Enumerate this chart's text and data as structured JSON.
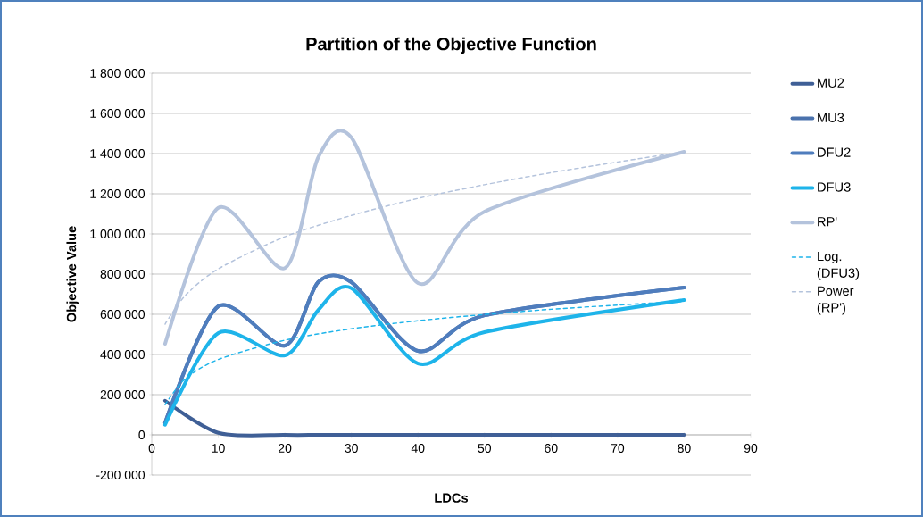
{
  "chart_data": {
    "type": "line",
    "title": "Partition of the Objective Function",
    "xlabel": "LDCs",
    "ylabel": "Objective Value",
    "x": [
      2,
      10,
      20,
      25,
      30,
      40,
      50,
      80
    ],
    "series": [
      {
        "name": "MU2",
        "color": "#3f5f96",
        "values": [
          170000,
          10000,
          0,
          0,
          0,
          0,
          0,
          0
        ]
      },
      {
        "name": "MU3",
        "color": "#4a72ad",
        "values": [
          60000,
          640000,
          444000,
          760000,
          760000,
          418000,
          595000,
          733000
        ]
      },
      {
        "name": "DFU2",
        "color": "#4f7dbd",
        "values": [
          60000,
          640000,
          444000,
          760000,
          760000,
          418000,
          595000,
          733000
        ]
      },
      {
        "name": "DFU3",
        "color": "#1eb4ea",
        "values": [
          50000,
          507000,
          395000,
          620000,
          730000,
          355000,
          511000,
          671000
        ]
      },
      {
        "name": "RP'",
        "color": "#b4c3dc",
        "values": [
          453000,
          1130000,
          830000,
          1380000,
          1480000,
          755000,
          1111000,
          1409000
        ]
      },
      {
        "name": "Log. (DFU3)",
        "color": "#1eb4ea",
        "line_style": "dashed",
        "x": [
          2,
          5,
          10,
          20,
          30,
          40,
          50,
          60,
          70,
          80
        ],
        "values": [
          150000,
          278000,
          375000,
          471000,
          528000,
          568000,
          599000,
          625000,
          646000,
          665000
        ]
      },
      {
        "name": "Power (RP')",
        "color": "#b4c3dc",
        "line_style": "dashed",
        "x": [
          2,
          5,
          10,
          20,
          30,
          40,
          50,
          60,
          70,
          80
        ],
        "values": [
          551000,
          692000,
          826000,
          986000,
          1092000,
          1177000,
          1245000,
          1305000,
          1358000,
          1409000
        ]
      }
    ],
    "xlim": [
      0,
      90
    ],
    "ylim": [
      -200000,
      1800000
    ],
    "xticks": [
      0,
      10,
      20,
      30,
      40,
      50,
      60,
      70,
      80,
      90
    ],
    "yticks": [
      {
        "value": -200000,
        "label": "-200 000"
      },
      0,
      {
        "value": 200000,
        "label": "200 000"
      },
      {
        "value": 400000,
        "label": "400 000"
      },
      {
        "value": 600000,
        "label": "600 000"
      },
      {
        "value": 800000,
        "label": "800 000"
      },
      {
        "value": 1000000,
        "label": "1 000 000"
      },
      {
        "value": 1200000,
        "label": "1 200 000"
      },
      {
        "value": 1400000,
        "label": "1 400 000"
      },
      {
        "value": 1600000,
        "label": "1 600 000"
      },
      {
        "value": 1800000,
        "label": "1 800 000"
      }
    ],
    "grid": "y",
    "legend": "right"
  }
}
